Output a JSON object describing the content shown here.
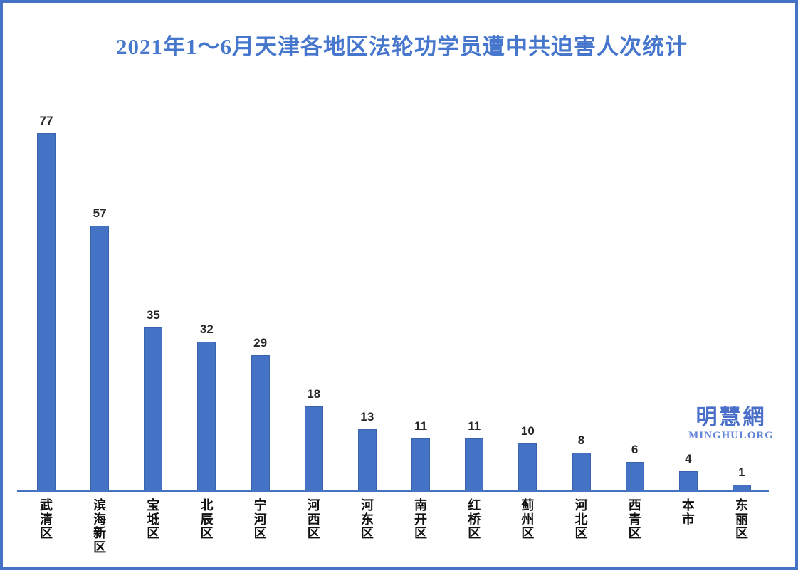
{
  "chart_data": {
    "type": "bar",
    "title": "2021年1～6月天津各地区法轮功学员遭中共迫害人次统计",
    "categories": [
      "武清区",
      "滨海新区",
      "宝坻区",
      "北辰区",
      "宁河区",
      "河西区",
      "河东区",
      "南开区",
      "红桥区",
      "蓟州区",
      "河北区",
      "西青区",
      "本市",
      "东丽区"
    ],
    "values": [
      77,
      57,
      35,
      32,
      29,
      18,
      13,
      11,
      11,
      10,
      8,
      6,
      4,
      1
    ],
    "xlabel": "",
    "ylabel": "",
    "ylim": [
      0,
      80
    ],
    "grid": false,
    "legend": "none",
    "data_labels": true,
    "category_label_orientation": "vertical",
    "bar_color": "#4472c4",
    "axis_color": "#4472c4"
  },
  "watermark": {
    "cjk": "明慧網",
    "latin": "MINGHUI.ORG"
  },
  "colors": {
    "background": "#ffffff",
    "border": "#4472c4",
    "title_text": "#4677cd",
    "value_label_text": "#262626",
    "category_label_text": "#111111",
    "watermark_cjk": "#4a6fc9",
    "watermark_latin": "#6385d6"
  }
}
